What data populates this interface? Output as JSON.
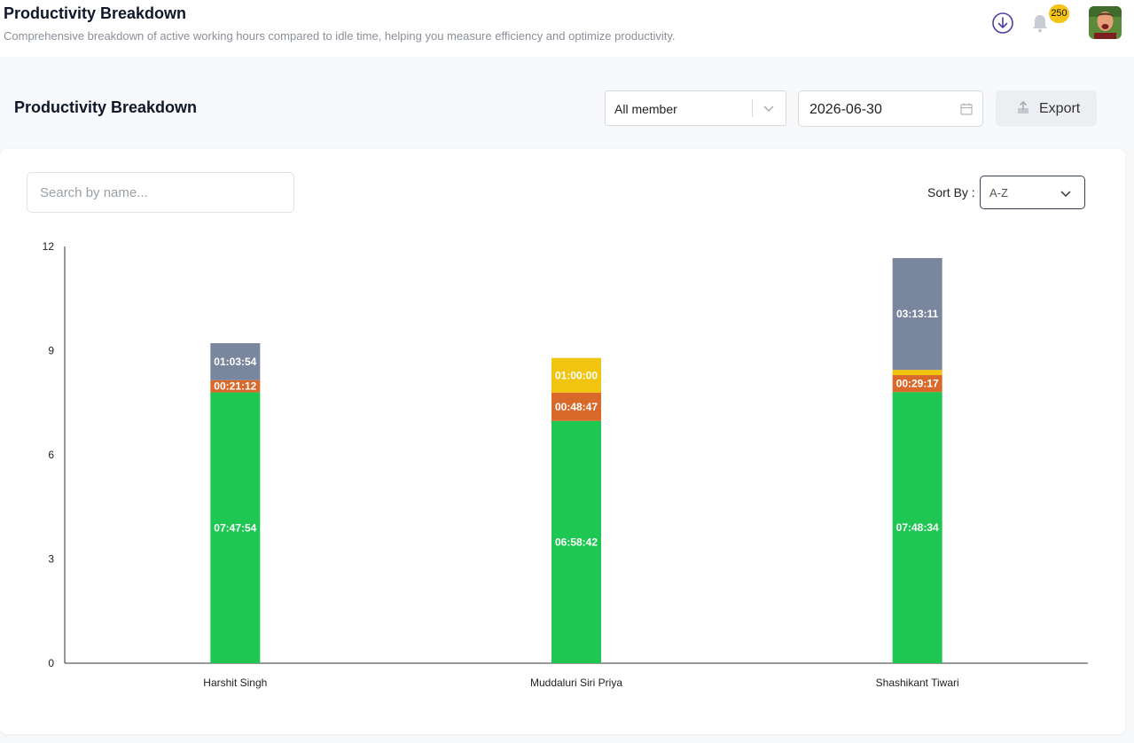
{
  "topbar": {
    "title": "Productivity Breakdown",
    "subtitle": "Comprehensive breakdown of active working hours compared to idle time, helping you measure efficiency and optimize productivity.",
    "notification_count": "250",
    "icons": [
      "download-icon",
      "bell-icon",
      "user-avatar"
    ]
  },
  "header": {
    "title": "Productivity Breakdown",
    "member_filter": "All member",
    "date": "2026-06-30",
    "export_label": "Export"
  },
  "controls": {
    "search_placeholder": "Search by name...",
    "sort_label": "Sort By :",
    "sort_value": "A-Z"
  },
  "colors": {
    "green": "#1dc752",
    "orange": "#d9692a",
    "yellow": "#f1c40f",
    "slate": "#7a859e",
    "badge": "#f4c515"
  },
  "chart_data": {
    "type": "bar",
    "stacked": true,
    "ylim": [
      0,
      12
    ],
    "yticks": [
      "0",
      "3",
      "6",
      "9",
      "12"
    ],
    "categories": [
      "Harshit Singh",
      "Muddaluri Siri Priya",
      "Shashikant Tiwari"
    ],
    "series": [
      {
        "color": "#1dc752",
        "values": [
          7.798,
          6.978,
          7.809
        ],
        "labels": [
          "07:47:54",
          "06:58:42",
          "07:48:34"
        ]
      },
      {
        "color": "#d9692a",
        "values": [
          0.353,
          0.813,
          0.488
        ],
        "labels": [
          "00:21:12",
          "00:48:47",
          "00:29:17"
        ]
      },
      {
        "color": "#f1c40f",
        "values": [
          0,
          1.0,
          0.15
        ],
        "labels": [
          "",
          "01:00:00",
          ""
        ]
      },
      {
        "color": "#7a859e",
        "values": [
          1.065,
          0,
          3.22
        ],
        "labels": [
          "01:03:54",
          "",
          "03:13:11"
        ]
      }
    ]
  }
}
